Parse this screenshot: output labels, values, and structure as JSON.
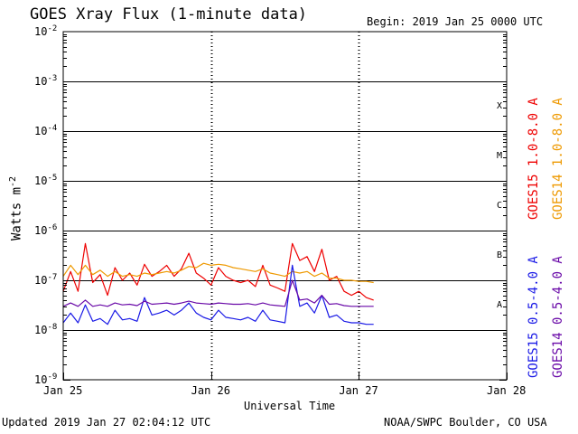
{
  "header": {
    "title": "GOES Xray Flux (1-minute data)",
    "begin": "Begin:  2019 Jan 25 0000 UTC"
  },
  "footer": {
    "updated": "Updated 2019 Jan 27 02:04:12 UTC",
    "credit": "NOAA/SWPC Boulder, CO USA"
  },
  "chart_data": {
    "type": "line",
    "title": "GOES Xray Flux (1-minute data)",
    "xlabel": "Universal Time",
    "ylabel": "Watts m",
    "ylabel_sup": "-2",
    "x_ticks": [
      "Jan 25",
      "Jan 26",
      "Jan 27",
      "Jan 28"
    ],
    "x_range_days": [
      0,
      3
    ],
    "y_scale": "log",
    "ylim": [
      1e-09,
      0.01
    ],
    "y_ticks": [
      {
        "base": "10",
        "exp": "-2"
      },
      {
        "base": "10",
        "exp": "-3"
      },
      {
        "base": "10",
        "exp": "-4"
      },
      {
        "base": "10",
        "exp": "-5"
      },
      {
        "base": "10",
        "exp": "-6"
      },
      {
        "base": "10",
        "exp": "-7"
      },
      {
        "base": "10",
        "exp": "-8"
      },
      {
        "base": "10",
        "exp": "-9"
      }
    ],
    "flare_classes": [
      {
        "label": "X",
        "level": 0.0001
      },
      {
        "label": "M",
        "level": 1e-05
      },
      {
        "label": "C",
        "level": 1e-06
      },
      {
        "label": "B",
        "level": 1e-07
      },
      {
        "label": "A",
        "level": 1e-08
      }
    ],
    "grid_levels": [
      0.001,
      0.0001,
      1e-05,
      1e-06,
      1e-07,
      1e-08
    ],
    "legend": [
      {
        "text": "GOES15 1.0-8.0 A",
        "color": "#ee0000"
      },
      {
        "text": "GOES14 1.0-8.0 A",
        "color": "#ee9900"
      },
      {
        "text": "GOES15 0.5-4.0 A",
        "color": "#1a1ae6"
      },
      {
        "text": "GOES14 0.5-4.0 A",
        "color": "#6a0aa8"
      }
    ],
    "series": [
      {
        "name": "GOES15 1.0-8.0 A",
        "color": "#ee0000",
        "x": [
          0.0,
          0.05,
          0.1,
          0.15,
          0.2,
          0.25,
          0.3,
          0.35,
          0.4,
          0.45,
          0.5,
          0.55,
          0.6,
          0.65,
          0.7,
          0.75,
          0.8,
          0.85,
          0.9,
          0.95,
          1.0,
          1.05,
          1.1,
          1.15,
          1.2,
          1.25,
          1.3,
          1.35,
          1.4,
          1.45,
          1.5,
          1.55,
          1.6,
          1.65,
          1.7,
          1.75,
          1.8,
          1.85,
          1.9,
          1.95,
          2.0,
          2.05,
          2.1
        ],
        "y": [
          6e-08,
          1.5e-07,
          6e-08,
          5.5e-07,
          9e-08,
          1.3e-07,
          5e-08,
          1.8e-07,
          1e-07,
          1.4e-07,
          8e-08,
          2.1e-07,
          1.2e-07,
          1.5e-07,
          2e-07,
          1.2e-07,
          1.7e-07,
          3.5e-07,
          1.4e-07,
          1.1e-07,
          8e-08,
          1.8e-07,
          1.2e-07,
          1e-07,
          9e-08,
          1e-07,
          7.5e-08,
          2e-07,
          8e-08,
          7e-08,
          6e-08,
          5.5e-07,
          2.5e-07,
          3e-07,
          1.5e-07,
          4.2e-07,
          1e-07,
          1.2e-07,
          6e-08,
          5e-08,
          6e-08,
          4.5e-08,
          4e-08
        ]
      },
      {
        "name": "GOES14 1.0-8.0 A",
        "color": "#ee9900",
        "x": [
          0.0,
          0.05,
          0.1,
          0.15,
          0.2,
          0.25,
          0.3,
          0.35,
          0.4,
          0.45,
          0.5,
          0.55,
          0.6,
          0.65,
          0.7,
          0.75,
          0.8,
          0.85,
          0.9,
          0.95,
          1.0,
          1.05,
          1.1,
          1.15,
          1.2,
          1.25,
          1.3,
          1.35,
          1.4,
          1.45,
          1.5,
          1.55,
          1.6,
          1.65,
          1.7,
          1.75,
          1.8,
          1.85,
          1.9,
          1.95,
          2.0,
          2.05,
          2.1
        ],
        "y": [
          1.2e-07,
          2e-07,
          1.3e-07,
          2e-07,
          1.3e-07,
          1.6e-07,
          1.2e-07,
          1.5e-07,
          1.2e-07,
          1.3e-07,
          1.2e-07,
          1.4e-07,
          1.3e-07,
          1.4e-07,
          1.5e-07,
          1.4e-07,
          1.6e-07,
          1.9e-07,
          1.8e-07,
          2.2e-07,
          2e-07,
          2.1e-07,
          2e-07,
          1.8e-07,
          1.7e-07,
          1.6e-07,
          1.5e-07,
          1.7e-07,
          1.4e-07,
          1.3e-07,
          1.2e-07,
          1.5e-07,
          1.4e-07,
          1.5e-07,
          1.2e-07,
          1.4e-07,
          1.1e-07,
          1.1e-07,
          1e-07,
          1e-07,
          9.5e-08,
          9.5e-08,
          9e-08
        ]
      },
      {
        "name": "GOES15 0.5-4.0 A",
        "color": "#1a1ae6",
        "x": [
          0.0,
          0.05,
          0.1,
          0.15,
          0.2,
          0.25,
          0.3,
          0.35,
          0.4,
          0.45,
          0.5,
          0.55,
          0.6,
          0.65,
          0.7,
          0.75,
          0.8,
          0.85,
          0.9,
          0.95,
          1.0,
          1.05,
          1.1,
          1.15,
          1.2,
          1.25,
          1.3,
          1.35,
          1.4,
          1.45,
          1.5,
          1.55,
          1.6,
          1.65,
          1.7,
          1.75,
          1.8,
          1.85,
          1.9,
          1.95,
          2.0,
          2.05,
          2.1
        ],
        "y": [
          1.4e-08,
          2.2e-08,
          1.4e-08,
          3.2e-08,
          1.5e-08,
          1.7e-08,
          1.3e-08,
          2.5e-08,
          1.6e-08,
          1.7e-08,
          1.5e-08,
          4.5e-08,
          2e-08,
          2.2e-08,
          2.5e-08,
          2e-08,
          2.5e-08,
          3.5e-08,
          2.2e-08,
          1.8e-08,
          1.6e-08,
          2.5e-08,
          1.8e-08,
          1.7e-08,
          1.6e-08,
          1.8e-08,
          1.5e-08,
          2.5e-08,
          1.6e-08,
          1.5e-08,
          1.4e-08,
          2e-07,
          3e-08,
          3.5e-08,
          2.2e-08,
          5e-08,
          1.8e-08,
          2e-08,
          1.5e-08,
          1.4e-08,
          1.4e-08,
          1.3e-08,
          1.3e-08
        ]
      },
      {
        "name": "GOES14 0.5-4.0 A",
        "color": "#6a0aa8",
        "x": [
          0.0,
          0.05,
          0.1,
          0.15,
          0.2,
          0.25,
          0.3,
          0.35,
          0.4,
          0.45,
          0.5,
          0.55,
          0.6,
          0.65,
          0.7,
          0.75,
          0.8,
          0.85,
          0.9,
          0.95,
          1.0,
          1.05,
          1.1,
          1.15,
          1.2,
          1.25,
          1.3,
          1.35,
          1.4,
          1.45,
          1.5,
          1.55,
          1.6,
          1.65,
          1.7,
          1.75,
          1.8,
          1.85,
          1.9,
          1.95,
          2.0,
          2.05,
          2.1
        ],
        "y": [
          3e-08,
          3.5e-08,
          3e-08,
          4e-08,
          3e-08,
          3.2e-08,
          3e-08,
          3.5e-08,
          3.2e-08,
          3.3e-08,
          3.1e-08,
          3.8e-08,
          3.3e-08,
          3.4e-08,
          3.5e-08,
          3.3e-08,
          3.5e-08,
          3.8e-08,
          3.5e-08,
          3.4e-08,
          3.3e-08,
          3.5e-08,
          3.4e-08,
          3.3e-08,
          3.3e-08,
          3.4e-08,
          3.2e-08,
          3.5e-08,
          3.2e-08,
          3.1e-08,
          3e-08,
          1e-07,
          4e-08,
          4.2e-08,
          3.5e-08,
          5e-08,
          3.3e-08,
          3.4e-08,
          3.1e-08,
          3e-08,
          3e-08,
          3e-08,
          3e-08
        ]
      }
    ]
  }
}
